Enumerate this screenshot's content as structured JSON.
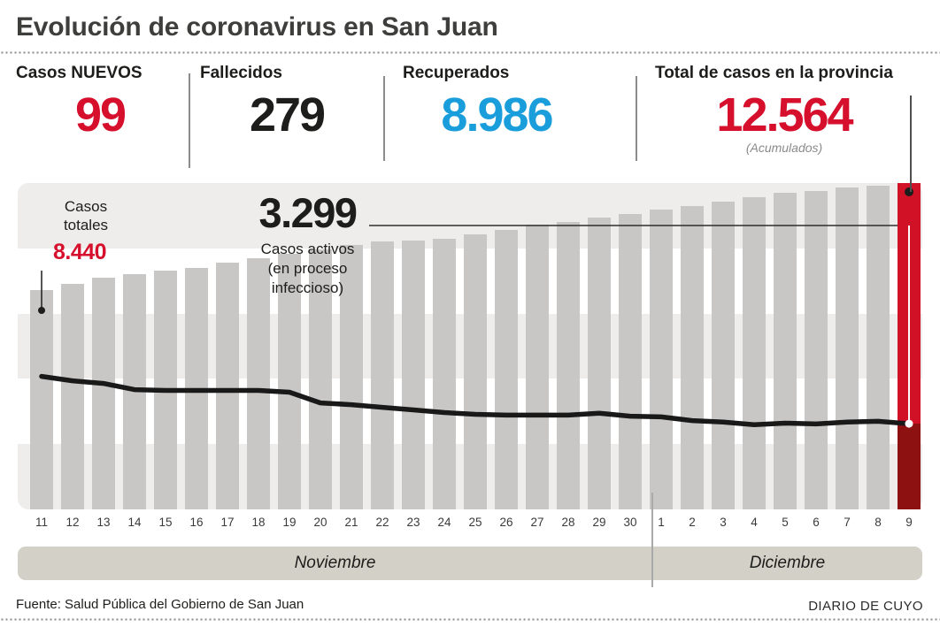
{
  "title": "Evolución de coronavirus en San Juan",
  "palette": {
    "red": "#d6102c",
    "blue": "#1a9edb",
    "dark": "#1d1d1b",
    "bar_gray": "#c8c7c6",
    "bar_red": "#d01126",
    "bar_dark_red": "#8e1112",
    "stripe_gray": "#eeedeb",
    "band_tan": "#d3d0c7"
  },
  "stats": [
    {
      "label": "Casos NUEVOS",
      "value": "99",
      "color": "#d6102c",
      "note": ""
    },
    {
      "label": "Fallecidos",
      "value": "279",
      "color": "#1d1d1b",
      "note": ""
    },
    {
      "label": "Recuperados",
      "value": "8.986",
      "color": "#1a9edb",
      "note": ""
    },
    {
      "label": "Total de casos en la provincia",
      "value": "12.564",
      "color": "#d6102c",
      "note": "(Acumulados)"
    }
  ],
  "plot_annotations": {
    "casos_totales_label": "Casos\ntotales",
    "casos_totales_value": "8.440",
    "activos_value": "3.299",
    "activos_label": "Casos activos\n(en proceso\ninfeccioso)"
  },
  "chart_data": {
    "type": "bar",
    "title": "Evolución de coronavirus en San Juan",
    "categories": [
      "11",
      "12",
      "13",
      "14",
      "15",
      "16",
      "17",
      "18",
      "19",
      "20",
      "21",
      "22",
      "23",
      "24",
      "25",
      "26",
      "27",
      "28",
      "29",
      "30",
      "1",
      "2",
      "3",
      "4",
      "5",
      "6",
      "7",
      "8",
      "9"
    ],
    "month_groups": [
      {
        "label": "Noviembre",
        "days": 20
      },
      {
        "label": "Diciembre",
        "days": 9
      }
    ],
    "series": [
      {
        "name": "Casos totales (acumulados)",
        "type": "bar",
        "values": [
          8440,
          8690,
          8920,
          9060,
          9190,
          9300,
          9500,
          9670,
          9840,
          10010,
          10180,
          10310,
          10350,
          10420,
          10590,
          10760,
          10960,
          11060,
          11230,
          11370,
          11540,
          11670,
          11840,
          12010,
          12180,
          12250,
          12390,
          12465,
          12564
        ],
        "first_value_label": "8.440",
        "last_value_label": "12.564"
      },
      {
        "name": "Casos activos (en proceso infeccioso)",
        "type": "line",
        "values": [
          5120,
          4950,
          4850,
          4610,
          4580,
          4580,
          4580,
          4580,
          4510,
          4100,
          4030,
          3930,
          3830,
          3730,
          3660,
          3630,
          3630,
          3630,
          3700,
          3590,
          3560,
          3420,
          3360,
          3260,
          3320,
          3290,
          3360,
          3390,
          3299
        ],
        "last_value_label": "3.299"
      }
    ],
    "ylim": [
      0,
      12564
    ],
    "grid": "alternating horizontal stripes",
    "legend_position": "none",
    "highlighted_category": "9"
  },
  "footer": {
    "source": "Fuente: Salud Pública del Gobierno de San Juan",
    "credit": "DIARIO DE CUYO"
  }
}
